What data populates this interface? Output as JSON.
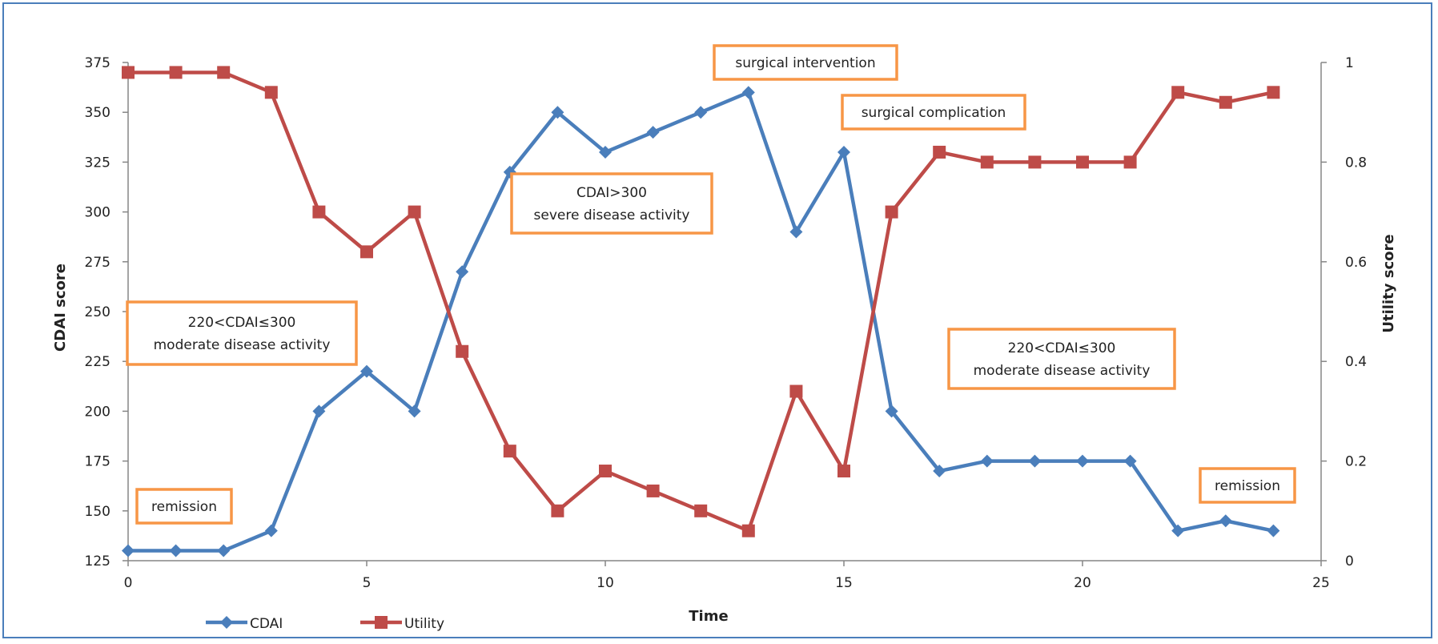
{
  "chart_data": {
    "type": "line",
    "xlabel": "Time",
    "ylabel": "CDAI score",
    "y2label": "Utility score",
    "xlim": [
      0,
      25
    ],
    "ylim": [
      125,
      375
    ],
    "y2lim": [
      0,
      1
    ],
    "x_ticks": [
      "0",
      "5",
      "10",
      "15",
      "20",
      "25"
    ],
    "y_ticks": [
      "125",
      "150",
      "175",
      "200",
      "225",
      "250",
      "275",
      "300",
      "325",
      "350",
      "375"
    ],
    "y2_ticks": [
      "0",
      "0.2",
      "0.4",
      "0.6",
      "0.8",
      "1"
    ],
    "grid": false,
    "legend_position": "bottom-left",
    "x": [
      0,
      1,
      2,
      3,
      4,
      5,
      6,
      7,
      8,
      9,
      10,
      11,
      12,
      13,
      14,
      15,
      16,
      17,
      18,
      19,
      20,
      21,
      22,
      23,
      24
    ],
    "series": [
      {
        "name": "CDAI",
        "axis": "left",
        "color": "#4a7ebb",
        "marker": "diamond",
        "values": [
          130,
          130,
          130,
          140,
          200,
          220,
          200,
          270,
          320,
          350,
          330,
          340,
          350,
          360,
          290,
          330,
          200,
          170,
          175,
          175,
          175,
          175,
          140,
          145,
          140
        ]
      },
      {
        "name": "Utility",
        "axis": "right",
        "color": "#be4b48",
        "marker": "square",
        "values": [
          0.98,
          0.98,
          0.98,
          0.94,
          0.7,
          0.62,
          0.7,
          0.42,
          0.22,
          0.1,
          0.18,
          0.14,
          0.1,
          0.06,
          0.34,
          0.18,
          0.7,
          0.82,
          0.8,
          0.8,
          0.8,
          0.8,
          0.94,
          0.92,
          0.94
        ]
      }
    ],
    "annotations": [
      {
        "lines": [
          "surgical intervention"
        ]
      },
      {
        "lines": [
          "surgical complication"
        ]
      },
      {
        "lines": [
          "CDAI>300",
          "severe disease activity"
        ]
      },
      {
        "lines": [
          "220<CDAI≤300",
          "moderate disease  activity"
        ]
      },
      {
        "lines": [
          "220<CDAI≤300",
          "moderate disease  activity"
        ]
      },
      {
        "lines": [
          "remission"
        ]
      },
      {
        "lines": [
          "remission"
        ]
      }
    ],
    "annotation_border_color": "#f79646"
  }
}
